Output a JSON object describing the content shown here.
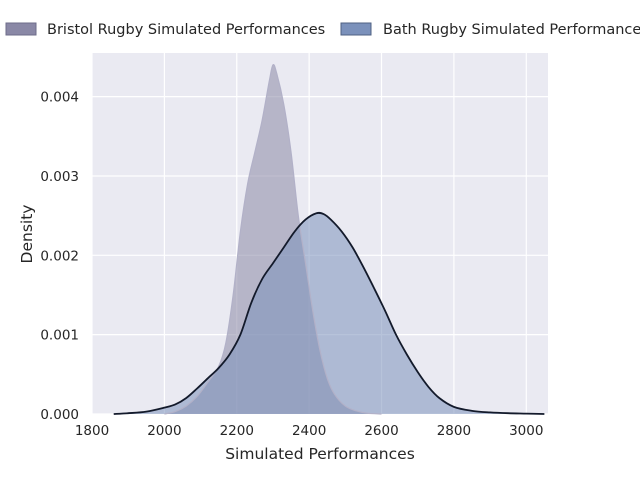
{
  "chart_data": {
    "type": "area",
    "title": "",
    "xlabel": "Simulated Performances",
    "ylabel": "Density",
    "xlim": [
      1800,
      3060
    ],
    "ylim": [
      0,
      0.00455
    ],
    "x_ticks": [
      1800,
      2000,
      2200,
      2400,
      2600,
      2800,
      3000
    ],
    "y_ticks": [
      0.0,
      0.001,
      0.002,
      0.003,
      0.004
    ],
    "x_tick_labels": [
      "1800",
      "2000",
      "2200",
      "2400",
      "2600",
      "2800",
      "3000"
    ],
    "y_tick_labels": [
      "0.000",
      "0.001",
      "0.002",
      "0.003",
      "0.004"
    ],
    "grid": true,
    "legend": "top",
    "series": [
      {
        "name": "Bristol Rugby Simulated Performances",
        "color": "#8a88a6",
        "x": [
          2000,
          2030,
          2060,
          2090,
          2120,
          2150,
          2170,
          2190,
          2210,
          2230,
          2250,
          2270,
          2290,
          2300,
          2310,
          2330,
          2350,
          2370,
          2390,
          2410,
          2430,
          2450,
          2470,
          2500,
          2530,
          2560,
          2600
        ],
        "values": [
          0,
          3e-05,
          0.0001,
          0.00022,
          0.0004,
          0.0006,
          0.0009,
          0.0015,
          0.0023,
          0.0029,
          0.0033,
          0.0037,
          0.0042,
          0.0044,
          0.0043,
          0.0039,
          0.0033,
          0.0025,
          0.0019,
          0.0013,
          0.0008,
          0.00045,
          0.00025,
          0.0001,
          4e-05,
          1e-05,
          0
        ]
      },
      {
        "name": "Bath Rugby Simulated Performances",
        "color": "#7b91bb",
        "x": [
          1860,
          1900,
          1950,
          2000,
          2030,
          2060,
          2090,
          2120,
          2150,
          2180,
          2210,
          2240,
          2270,
          2300,
          2330,
          2360,
          2390,
          2420,
          2440,
          2460,
          2490,
          2520,
          2550,
          2580,
          2610,
          2640,
          2670,
          2700,
          2730,
          2760,
          2800,
          2850,
          2900,
          2950,
          3000,
          3050
        ],
        "values": [
          0,
          1e-05,
          3e-05,
          8e-05,
          0.00012,
          0.0002,
          0.00032,
          0.00045,
          0.00058,
          0.00075,
          0.001,
          0.0014,
          0.0017,
          0.0019,
          0.0021,
          0.0023,
          0.00245,
          0.00253,
          0.00252,
          0.00245,
          0.0023,
          0.0021,
          0.00185,
          0.00158,
          0.0013,
          0.001,
          0.00075,
          0.00053,
          0.00034,
          0.0002,
          9e-05,
          4e-05,
          2e-05,
          1e-05,
          5e-06,
          0
        ]
      }
    ]
  }
}
